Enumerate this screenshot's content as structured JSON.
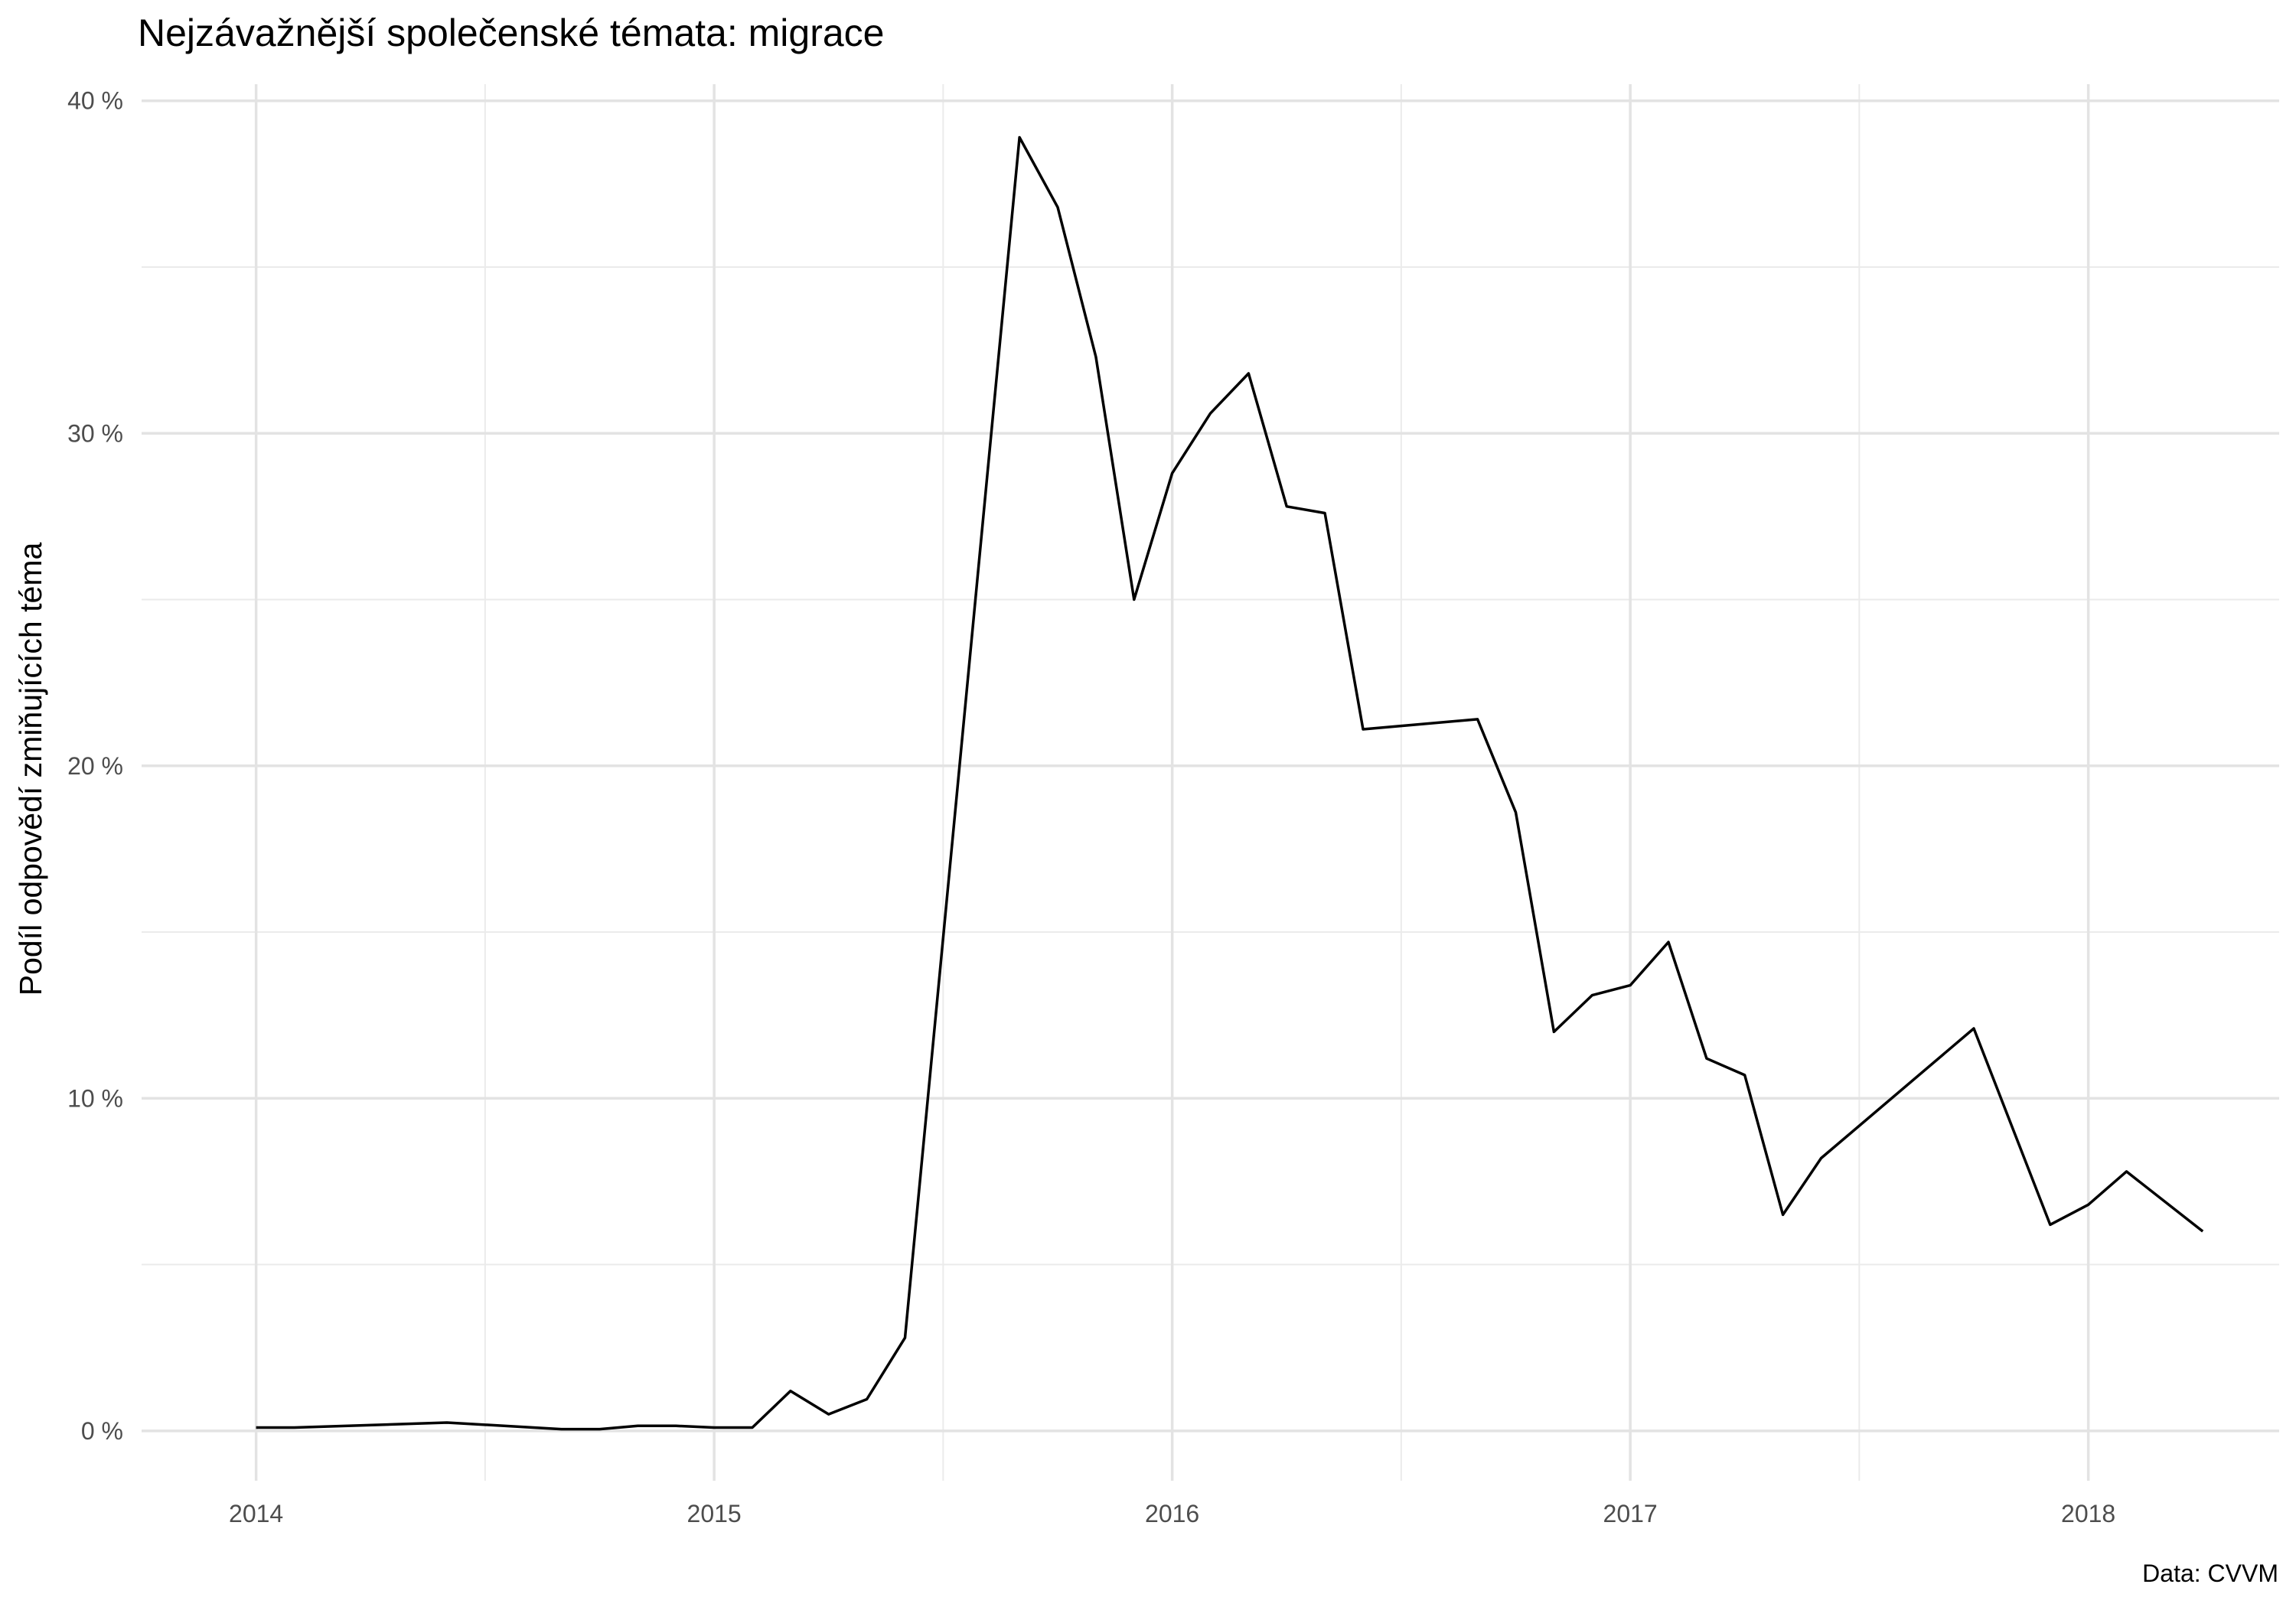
{
  "chart_data": {
    "type": "line",
    "title": "Nejzávažnější společenské témata: migrace",
    "xlabel": "",
    "ylabel": "Podíl odpovědí zmiňujících téma",
    "caption": "Data: CVVM",
    "x_tick_labels": [
      "2014",
      "2015",
      "2016",
      "2017",
      "2018"
    ],
    "y_tick_labels": [
      "0 %",
      "10 %",
      "20 %",
      "30 %",
      "40 %"
    ],
    "y_ticks": [
      0,
      10,
      20,
      30,
      40
    ],
    "xlim": [
      "2013-10",
      "2018-06"
    ],
    "ylim": [
      -1.5,
      40.5
    ],
    "grid": true,
    "line_color": "#000000",
    "series": [
      {
        "x": [
          "2014-01",
          "2014-02",
          "2014-06",
          "2014-09",
          "2014-10",
          "2014-11",
          "2014-12",
          "2015-01",
          "2015-02",
          "2015-03",
          "2015-04",
          "2015-05",
          "2015-06",
          "2015-09",
          "2015-10",
          "2015-11",
          "2015-12",
          "2016-01",
          "2016-02",
          "2016-03",
          "2016-04",
          "2016-05",
          "2016-06",
          "2016-09",
          "2016-10",
          "2016-11",
          "2016-12",
          "2017-01",
          "2017-02",
          "2017-03",
          "2017-04",
          "2017-05",
          "2017-06",
          "2017-10",
          "2017-12",
          "2018-01",
          "2018-02",
          "2018-04"
        ],
        "values": [
          0.1,
          0.1,
          0.25,
          0.05,
          0.05,
          0.15,
          0.15,
          0.1,
          0.1,
          1.2,
          0.5,
          0.95,
          2.8,
          38.9,
          36.8,
          32.3,
          25.0,
          28.8,
          30.6,
          31.8,
          27.8,
          27.6,
          21.1,
          21.4,
          18.6,
          12.0,
          13.1,
          13.4,
          14.7,
          11.2,
          10.7,
          6.5,
          8.2,
          12.1,
          6.2,
          6.8,
          7.8,
          6.0
        ]
      }
    ]
  }
}
